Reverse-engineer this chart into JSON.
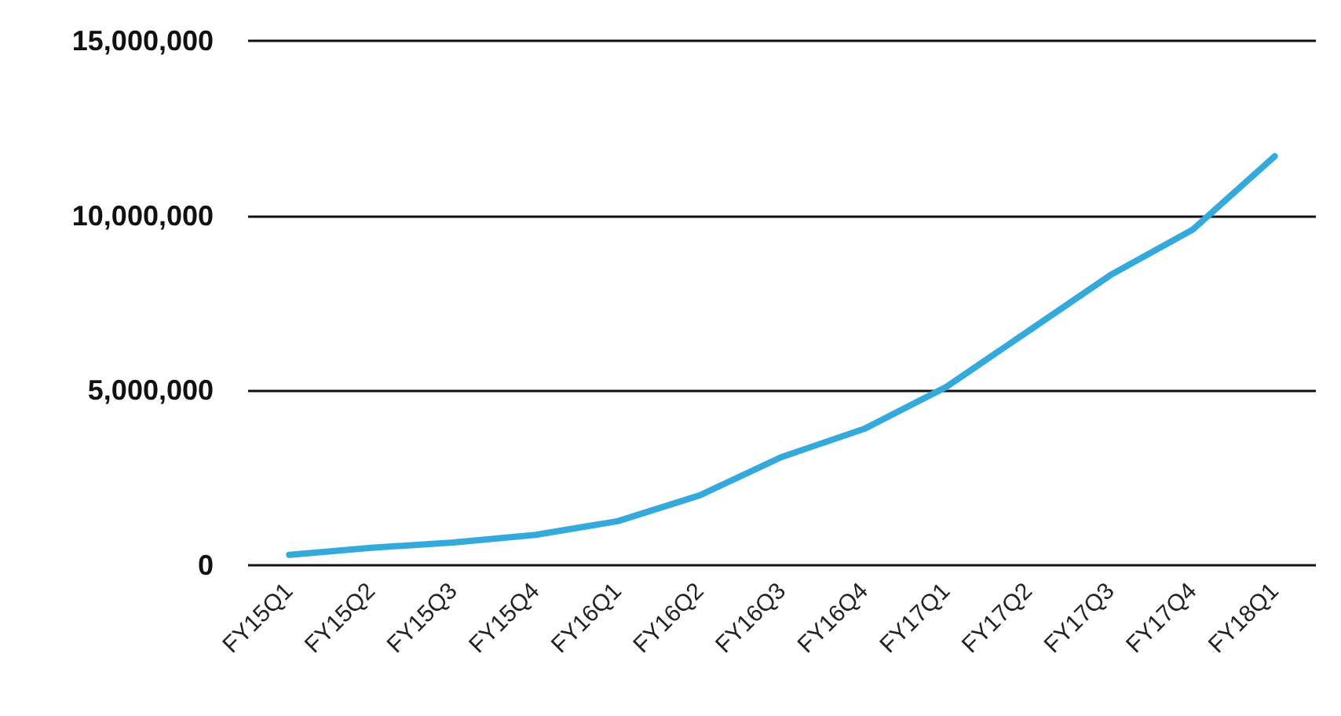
{
  "chart_data": {
    "type": "line",
    "categories": [
      "FY15Q1",
      "FY15Q2",
      "FY15Q3",
      "FY15Q4",
      "FY16Q1",
      "FY16Q2",
      "FY16Q3",
      "FY16Q4",
      "FY17Q1",
      "FY17Q2",
      "FY17Q3",
      "FY17Q4",
      "FY18Q1"
    ],
    "series": [
      {
        "color": "#33a9dc",
        "values": [
          300000,
          500000,
          650000,
          870000,
          1260000,
          2000000,
          3100000,
          3900000,
          5100000,
          6700000,
          8300000,
          9600000,
          11700000
        ]
      }
    ],
    "ylim": [
      0,
      15000000
    ],
    "yticks": [
      {
        "value": 0,
        "label": "0"
      },
      {
        "value": 5000000,
        "label": "5,000,000"
      },
      {
        "value": 10000000,
        "label": "10,000,000"
      },
      {
        "value": 15000000,
        "label": "15,000,000"
      }
    ],
    "grid": "y",
    "marker": "none",
    "line_style": "solid"
  }
}
